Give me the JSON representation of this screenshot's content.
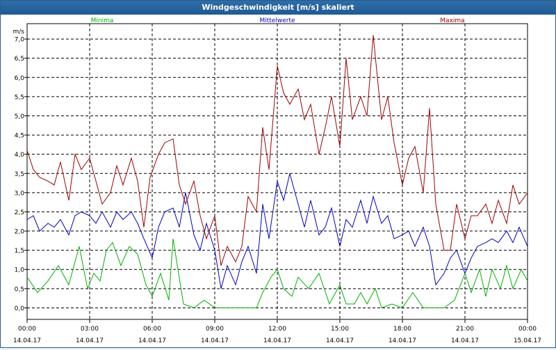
{
  "window": {
    "title": "Windgeschwindigkeit [m/s] skaliert"
  },
  "colors": {
    "min": "#00b000",
    "mean": "#0000c0",
    "max": "#a00000",
    "titlebar": "#1f5a94"
  },
  "chart_data": {
    "type": "line",
    "title": "Windgeschwindigkeit [m/s] skaliert",
    "ylabel": "m/s",
    "xlabel": "",
    "ylim": [
      -0.3,
      7.4
    ],
    "xlim": [
      0,
      24
    ],
    "grid": true,
    "legend_placement": "top",
    "yticks": [
      "0,0",
      "0,5",
      "1,0",
      "1,5",
      "2,0",
      "2,5",
      "3,0",
      "3,5",
      "4,0",
      "4,5",
      "5,0",
      "5,5",
      "6,0",
      "6,5",
      "7,0"
    ],
    "ytick_values": [
      0,
      0.5,
      1,
      1.5,
      2,
      2.5,
      3,
      3.5,
      4,
      4.5,
      5,
      5.5,
      6,
      6.5,
      7
    ],
    "xticks": [
      {
        "value": 0,
        "time": "00:00",
        "date": "14.04.17"
      },
      {
        "value": 3,
        "time": "03:00",
        "date": "14.04.17"
      },
      {
        "value": 6,
        "time": "06:00",
        "date": "14.04.17"
      },
      {
        "value": 9,
        "time": "09:00",
        "date": "14.04.17"
      },
      {
        "value": 12,
        "time": "12:00",
        "date": "14.04.17"
      },
      {
        "value": 15,
        "time": "15:00",
        "date": "14.04.17"
      },
      {
        "value": 18,
        "time": "18:00",
        "date": "14.04.17"
      },
      {
        "value": 21,
        "time": "21:00",
        "date": "14.04.17"
      },
      {
        "value": 24,
        "time": "00:00",
        "date": "15.04.17"
      }
    ],
    "series": [
      {
        "name": "Minima",
        "color": "#00b000",
        "x": [
          0,
          0.5,
          1,
          1.5,
          2,
          2.5,
          2.9,
          3.2,
          3.5,
          3.8,
          4.1,
          4.5,
          4.9,
          5.3,
          5.7,
          6.0,
          6.4,
          6.8,
          7.0,
          7.5,
          8,
          8.5,
          9,
          9.5,
          10,
          10.5,
          11,
          11.3,
          11.7,
          12,
          12.3,
          12.7,
          13,
          13.5,
          14,
          14.5,
          15,
          15.3,
          15.7,
          16,
          16.3,
          16.7,
          17,
          17.5,
          18,
          18.5,
          19,
          19.5,
          20,
          20.5,
          21,
          21.3,
          21.7,
          22,
          22.3,
          22.7,
          23,
          23.3,
          23.7,
          24
        ],
        "y": [
          0.8,
          0.4,
          0.7,
          1.1,
          0.6,
          1.6,
          0.5,
          0.9,
          0.7,
          1.5,
          1.7,
          1.1,
          1.6,
          1.4,
          0.6,
          0.3,
          0.9,
          0.2,
          1.8,
          0.1,
          0,
          0.2,
          0,
          0,
          0,
          0,
          0,
          0.4,
          0.8,
          1.0,
          0.5,
          0.3,
          0.8,
          0.5,
          0.9,
          0.1,
          0.6,
          0.1,
          0.1,
          0.4,
          0.1,
          0.5,
          0,
          0.1,
          0,
          0.4,
          0,
          0,
          0,
          0.2,
          0.9,
          0.4,
          1.0,
          0.3,
          1.0,
          0.5,
          1.1,
          0.5,
          1.0,
          0.7
        ]
      },
      {
        "name": "Mittelwerte",
        "color": "#0000c0",
        "x": [
          0,
          0.3,
          0.6,
          1,
          1.3,
          1.6,
          2,
          2.3,
          2.6,
          3,
          3.3,
          3.6,
          4,
          4.3,
          4.6,
          5,
          5.3,
          5.6,
          6.0,
          6.3,
          6.6,
          7.0,
          7.3,
          7.6,
          8,
          8.3,
          8.6,
          9,
          9.3,
          9.6,
          10,
          10.3,
          10.6,
          11,
          11.3,
          11.6,
          12,
          12.3,
          12.6,
          13,
          13.3,
          13.6,
          14,
          14.3,
          14.6,
          15,
          15.3,
          15.6,
          16,
          16.3,
          16.6,
          17,
          17.3,
          17.6,
          18,
          18.3,
          18.6,
          19,
          19.3,
          19.6,
          20,
          20.3,
          20.6,
          21,
          21.3,
          21.6,
          22,
          22.3,
          22.6,
          23,
          23.3,
          23.6,
          24
        ],
        "y": [
          2.3,
          2.4,
          2.0,
          2.2,
          2.1,
          2.3,
          1.9,
          2.4,
          2.5,
          2.4,
          2.2,
          2.5,
          2.1,
          2.5,
          2.3,
          2.5,
          2.2,
          1.8,
          1.3,
          2.1,
          2.5,
          2.6,
          2.1,
          3.0,
          1.9,
          1.5,
          2.2,
          1.5,
          0.5,
          1.1,
          0.6,
          1.2,
          1.6,
          0.9,
          2.7,
          1.8,
          3.3,
          2.8,
          3.5,
          2.7,
          2.1,
          2.8,
          1.9,
          2.1,
          2.6,
          1.6,
          2.3,
          2.1,
          2.8,
          2.2,
          2.9,
          2.2,
          2.4,
          1.8,
          1.9,
          2.0,
          1.6,
          2.1,
          1.6,
          0.6,
          0.9,
          1.3,
          1.5,
          0.9,
          1.3,
          1.6,
          1.7,
          1.8,
          1.7,
          2.0,
          1.7,
          2.1,
          1.6
        ]
      },
      {
        "name": "Maxima",
        "color": "#a00000",
        "x": [
          0,
          0.3,
          0.6,
          1,
          1.3,
          1.6,
          2,
          2.3,
          2.6,
          3,
          3.3,
          3.6,
          4,
          4.3,
          4.6,
          5,
          5.3,
          5.6,
          5.9,
          6.3,
          6.6,
          7.0,
          7.3,
          7.6,
          8,
          8.3,
          8.6,
          9,
          9.3,
          9.6,
          10,
          10.3,
          10.6,
          11,
          11.3,
          11.6,
          12,
          12.3,
          12.6,
          13,
          13.3,
          13.6,
          14,
          14.3,
          14.6,
          15,
          15.3,
          15.6,
          16,
          16.3,
          16.6,
          17,
          17.3,
          17.6,
          18,
          18.3,
          18.6,
          19,
          19.3,
          19.6,
          20,
          20.3,
          20.6,
          21,
          21.3,
          21.6,
          22,
          22.3,
          22.6,
          23,
          23.3,
          23.6,
          24
        ],
        "y": [
          4.1,
          3.6,
          3.4,
          3.3,
          3.2,
          3.8,
          2.8,
          4.0,
          3.6,
          3.9,
          3.3,
          2.7,
          3.0,
          3.7,
          3.2,
          3.9,
          3.3,
          2.1,
          3.4,
          4.0,
          4.3,
          4.4,
          3.2,
          2.7,
          3.3,
          2.4,
          1.8,
          2.4,
          1.1,
          1.6,
          1.2,
          1.6,
          2.9,
          2.5,
          4.7,
          3.6,
          6.3,
          5.6,
          5.3,
          5.7,
          4.9,
          5.3,
          4.0,
          4.7,
          5.5,
          4.2,
          6.5,
          4.9,
          5.5,
          5.0,
          7.1,
          4.9,
          5.5,
          4.3,
          3.2,
          3.9,
          4.2,
          3.0,
          5.2,
          2.7,
          1.5,
          1.5,
          2.7,
          1.8,
          2.4,
          2.4,
          2.7,
          2.2,
          2.8,
          2.2,
          3.2,
          2.7,
          3.0
        ]
      }
    ]
  }
}
